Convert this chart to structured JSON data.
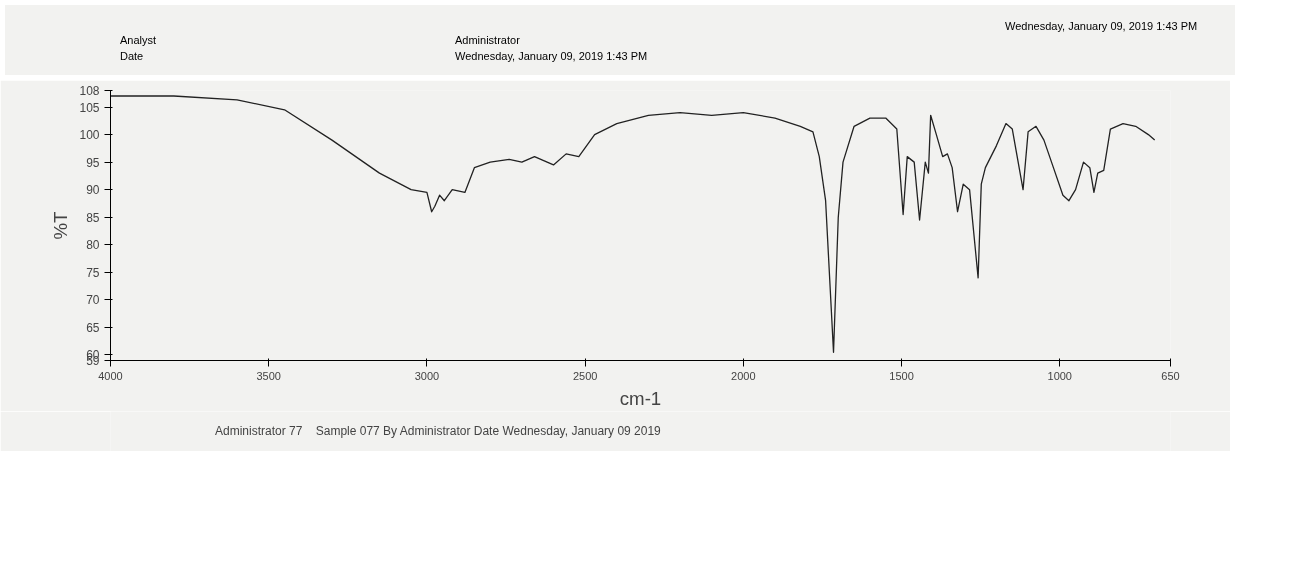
{
  "chart_data": {
    "type": "line",
    "xlabel": "cm-1",
    "ylabel": "%T",
    "annotations": [
      "Analyst",
      "Date",
      "Administrator",
      "Wednesday, January 09, 2019 1:43 PM",
      "Wednesday, January 09, 2019 1:43 PM"
    ],
    "xlim": [
      4000,
      650
    ],
    "xticks": [
      4000,
      3500,
      3000,
      2500,
      2000,
      1500,
      1000,
      650
    ],
    "ylim": [
      59,
      108
    ],
    "yticks": [
      59,
      60,
      65,
      70,
      75,
      80,
      85,
      90,
      95,
      100,
      105,
      108
    ],
    "legend": "bottom",
    "line_style": "solid",
    "series": [
      {
        "name": "Administrator 77    Sample 077 By Administrator Date Wednesday, January 09 2019",
        "color": "#222222",
        "x": [
          4000,
          3800,
          3600,
          3450,
          3300,
          3150,
          3050,
          3000,
          2985,
          2975,
          2960,
          2945,
          2920,
          2880,
          2850,
          2800,
          2740,
          2700,
          2660,
          2600,
          2560,
          2520,
          2470,
          2400,
          2300,
          2200,
          2100,
          2000,
          1900,
          1820,
          1780,
          1760,
          1740,
          1715,
          1700,
          1685,
          1650,
          1600,
          1550,
          1515,
          1495,
          1482,
          1460,
          1443,
          1425,
          1415,
          1408,
          1390,
          1370,
          1355,
          1340,
          1323,
          1305,
          1285,
          1258,
          1248,
          1235,
          1200,
          1170,
          1150,
          1116,
          1100,
          1075,
          1050,
          1020,
          990,
          971,
          950,
          925,
          905,
          892,
          880,
          861,
          840,
          800,
          760,
          720,
          700
        ],
        "values": [
          107,
          107,
          106.3,
          104.5,
          99,
          93,
          90,
          89.5,
          86,
          87,
          89,
          88,
          90,
          89.5,
          94,
          95,
          95.5,
          95,
          96,
          94.5,
          96.5,
          96,
          100,
          102,
          103.5,
          104,
          103.5,
          104,
          103,
          101.5,
          100.5,
          96,
          88,
          60.5,
          85,
          95,
          101.5,
          103,
          103,
          101,
          85.5,
          96,
          95,
          84.5,
          95,
          93,
          103.5,
          100,
          96,
          96.5,
          94,
          86,
          91,
          90,
          74,
          91,
          94,
          98,
          102,
          101,
          90,
          100.5,
          101.5,
          99,
          94,
          89,
          88,
          90,
          95,
          94,
          89.5,
          93,
          93.5,
          101,
          102,
          101.5,
          100,
          99
        ]
      }
    ]
  }
}
